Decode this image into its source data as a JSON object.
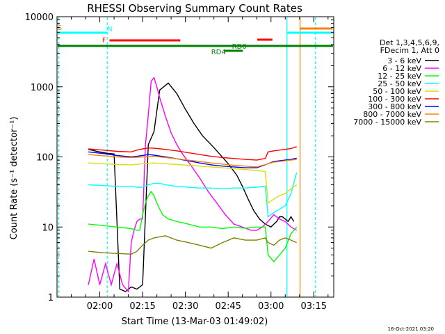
{
  "chart_data": {
    "type": "line",
    "title": "RHESSI Observing Summary Count Rates",
    "xlabel": "Start Time (13-Mar-03 01:49:02)",
    "ylabel": "Count Rate (s⁻¹ detector⁻¹)",
    "yscale": "log",
    "ylim": [
      1,
      10000
    ],
    "xlim_minutes": [
      -4,
      93
    ],
    "y_ticks": [
      "1",
      "10",
      "100",
      "1000",
      "10000"
    ],
    "x_ticks": [
      {
        "label": "02:00",
        "min": 11
      },
      {
        "label": "02:15",
        "min": 26
      },
      {
        "label": "02:30",
        "min": 41
      },
      {
        "label": "02:45",
        "min": 56
      },
      {
        "label": "03:00",
        "min": 71
      },
      {
        "label": "03:15",
        "min": 86
      }
    ],
    "legend": {
      "placement": "right",
      "header": [
        "Det 1,3,4,5,6,9,",
        "FDecim 1, Att 0"
      ],
      "entries": [
        {
          "label": "3 - 6 keV",
          "color": "#000000"
        },
        {
          "label": "6 - 12 keV",
          "color": "#ff00ff"
        },
        {
          "label": "12 - 25 keV",
          "color": "#00ff00"
        },
        {
          "label": "25 - 50 keV",
          "color": "#00ffff"
        },
        {
          "label": "50 - 100 keV",
          "color": "#dddd00"
        },
        {
          "label": "100 - 300 keV",
          "color": "#ff0000"
        },
        {
          "label": "300 - 800 keV",
          "color": "#0000ff"
        },
        {
          "label": "800 - 7000 keV",
          "color": "#ff8000"
        },
        {
          "label": "7000 - 15000 keV",
          "color": "#808000"
        }
      ]
    },
    "flags": [
      {
        "label": "S",
        "color": "#ff8000"
      },
      {
        "label": "N",
        "color": "#00ffff"
      },
      {
        "label": "F",
        "color": "#ff0000"
      },
      {
        "label": "RD0",
        "color": "#008000"
      },
      {
        "label": "RD4",
        "color": "#008000"
      }
    ],
    "series": [
      {
        "label": "3 - 6 keV",
        "color": "#000000",
        "x": [
          7,
          7.8,
          8.5,
          9.2,
          10,
          11,
          12,
          13,
          14,
          16,
          18,
          20,
          22,
          24,
          26,
          28,
          30,
          32,
          35,
          38,
          41,
          44,
          47,
          50,
          53,
          56,
          59,
          61,
          63,
          65,
          67,
          69,
          71,
          72,
          73,
          74,
          75,
          76,
          77,
          78,
          79
        ],
        "y": [
          128,
          126,
          124,
          122,
          120,
          118,
          116,
          114,
          112,
          110,
          1.3,
          1.2,
          1.4,
          1.3,
          1.5,
          150,
          230,
          900,
          1130,
          800,
          480,
          300,
          200,
          150,
          110,
          80,
          55,
          38,
          25,
          17,
          13,
          11,
          10,
          11,
          12,
          14,
          14,
          13,
          12,
          14,
          12
        ]
      },
      {
        "label": "6 - 12 keV",
        "color": "#ff00ff",
        "x": [
          7,
          9,
          11,
          13,
          15,
          17,
          19,
          21,
          22,
          23,
          24,
          25,
          26,
          27,
          28,
          29,
          30,
          31,
          32,
          34,
          36,
          38,
          40,
          43,
          46,
          49,
          52,
          55,
          58,
          61,
          64,
          66,
          68,
          70,
          72,
          74,
          76,
          78,
          80
        ],
        "y": [
          1.5,
          3.5,
          1.5,
          3,
          1.5,
          3,
          1.5,
          1.2,
          6,
          9,
          12,
          13,
          13,
          150,
          400,
          1200,
          1350,
          1000,
          700,
          380,
          220,
          150,
          110,
          75,
          50,
          32,
          22,
          15,
          11,
          10,
          9,
          9,
          10,
          12,
          15,
          13,
          12,
          10,
          9
        ]
      },
      {
        "label": "12 - 25 keV",
        "color": "#00ff00",
        "x": [
          7,
          12,
          17,
          22,
          24,
          25,
          26,
          27,
          28,
          29,
          30,
          31,
          32,
          33,
          35,
          38,
          42,
          46,
          50,
          54,
          58,
          62,
          66,
          69,
          70,
          72,
          74,
          76,
          78,
          80
        ],
        "y": [
          11,
          10.5,
          10,
          9.5,
          9,
          9,
          15,
          22,
          28,
          32,
          28,
          22,
          18,
          15,
          13,
          12,
          11,
          10,
          10,
          9.5,
          10,
          9.6,
          10,
          10,
          4,
          3.2,
          4,
          5,
          8,
          10
        ]
      },
      {
        "label": "25 - 50 keV",
        "color": "#00ffff",
        "x": [
          7,
          12,
          17,
          22,
          24,
          26,
          28,
          30,
          32,
          34,
          38,
          42,
          46,
          50,
          54,
          58,
          62,
          66,
          69,
          70,
          72,
          74,
          76,
          78,
          80
        ],
        "y": [
          40,
          39,
          38,
          38,
          37,
          37,
          40,
          42,
          42,
          40,
          38,
          37,
          36,
          36,
          35,
          36,
          36,
          37,
          38,
          14,
          16,
          18,
          20,
          30,
          60
        ]
      },
      {
        "label": "50 - 100 keV",
        "color": "#dddd00",
        "x": [
          7,
          12,
          17,
          22,
          26,
          30,
          34,
          38,
          42,
          46,
          50,
          54,
          58,
          62,
          66,
          69,
          70,
          72,
          74,
          76,
          78,
          80
        ],
        "y": [
          82,
          80,
          78,
          77,
          80,
          82,
          80,
          78,
          76,
          74,
          72,
          70,
          68,
          66,
          64,
          62,
          22,
          25,
          28,
          30,
          35,
          40
        ]
      },
      {
        "label": "100 - 300 keV",
        "color": "#ff0000",
        "x": [
          7,
          12,
          17,
          22,
          24,
          26,
          28,
          30,
          34,
          38,
          42,
          46,
          50,
          54,
          58,
          62,
          66,
          69,
          70,
          72,
          74,
          76,
          78,
          80
        ],
        "y": [
          130,
          125,
          120,
          118,
          125,
          130,
          134,
          133,
          128,
          122,
          115,
          108,
          102,
          98,
          95,
          92,
          90,
          95,
          118,
          122,
          125,
          128,
          132,
          140
        ]
      },
      {
        "label": "300 - 800 keV",
        "color": "#0000ff",
        "x": [
          7,
          12,
          17,
          22,
          24,
          26,
          28,
          30,
          34,
          38,
          42,
          46,
          50,
          54,
          58,
          62,
          66,
          70,
          72,
          74,
          76,
          78,
          80
        ],
        "y": [
          118,
          112,
          105,
          100,
          102,
          105,
          108,
          106,
          100,
          94,
          88,
          82,
          77,
          74,
          72,
          70,
          70,
          80,
          86,
          88,
          90,
          92,
          96
        ]
      },
      {
        "label": "800 - 7000 keV",
        "color": "#ff8000",
        "x": [
          7,
          12,
          17,
          22,
          26,
          30,
          34,
          38,
          42,
          46,
          50,
          54,
          58,
          62,
          66,
          70,
          72,
          74,
          76,
          78,
          80
        ],
        "y": [
          108,
          104,
          100,
          98,
          100,
          102,
          98,
          94,
          90,
          86,
          82,
          79,
          76,
          74,
          72,
          80,
          84,
          86,
          88,
          90,
          92
        ]
      },
      {
        "label": "7000 - 15000 keV",
        "color": "#808000",
        "x": [
          7,
          12,
          17,
          22,
          24,
          26,
          28,
          30,
          34,
          38,
          42,
          46,
          50,
          54,
          58,
          62,
          66,
          69,
          70,
          72,
          74,
          76,
          78,
          80
        ],
        "y": [
          4.5,
          4.3,
          4.2,
          4.1,
          4.5,
          5.5,
          6.5,
          7,
          7.5,
          6.5,
          6,
          5.5,
          5,
          6,
          7,
          6.5,
          6.5,
          7,
          6,
          5.5,
          6.5,
          7,
          6.5,
          6
        ]
      }
    ]
  },
  "footer": {
    "date_stamp": "16-Oct-2021 03:20"
  }
}
